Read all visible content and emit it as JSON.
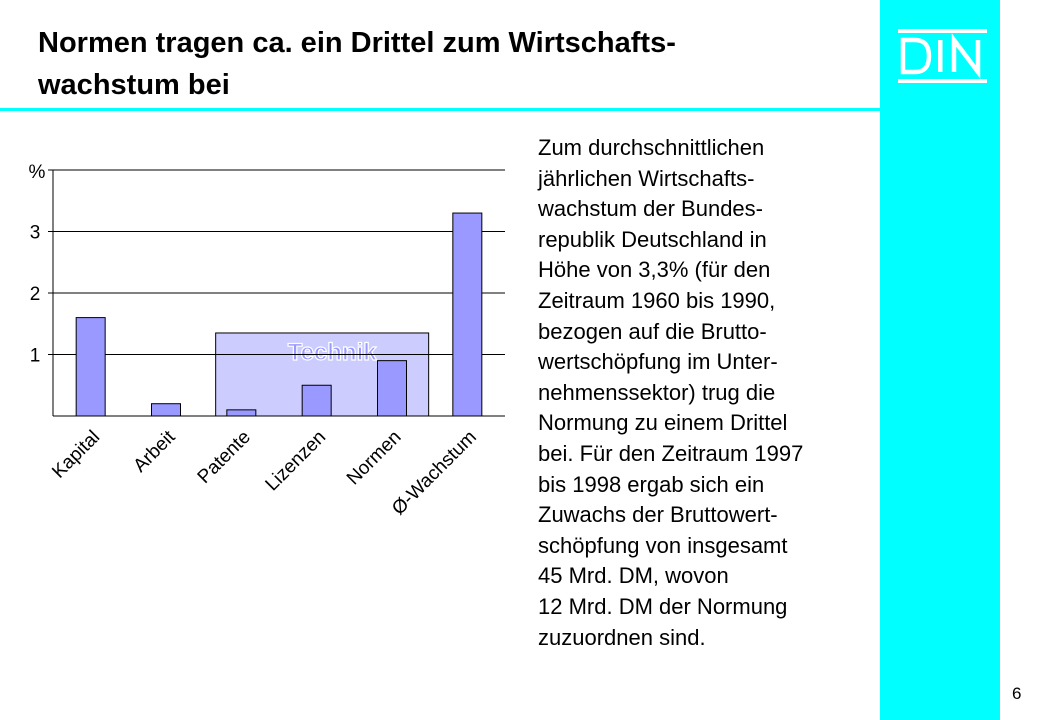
{
  "title": {
    "line1": "Normen tragen ca. ein Drittel zum Wirtschafts-",
    "line2": "wachstum bei"
  },
  "logo_text": "DIN",
  "page_number": "6",
  "colors": {
    "accent": "#00ffff",
    "bar_fill": "#9999ff",
    "technik_box": "#ccccff"
  },
  "description_lines": [
    "Zum durchschnittlichen",
    "jährlichen Wirtschafts-",
    "wachstum der Bundes-",
    "republik Deutschland in",
    "Höhe von 3,3% (für den",
    "Zeitraum 1960 bis 1990,",
    "bezogen auf die Brutto-",
    "wertschöpfung im Unter-",
    "nehmenssektor) trug die",
    "Normung zu einem Drittel",
    "bei. Für den Zeitraum 1997",
    "bis 1998 ergab sich ein",
    "Zuwachs der Bruttowert-",
    "schöpfung von insgesamt",
    "45 Mrd. DM, wovon",
    "12 Mrd. DM der Normung",
    "zuzuordnen sind."
  ],
  "chart_data": {
    "type": "bar",
    "categories": [
      "Kapital",
      "Arbeit",
      "Patente",
      "Lizenzen",
      "Normen",
      "Ø-Wachstum"
    ],
    "values": [
      1.6,
      0.2,
      0.1,
      0.5,
      0.9,
      3.3
    ],
    "ylabel": "%",
    "yticks": [
      "1",
      "2",
      "3"
    ],
    "ylim": [
      0,
      4
    ],
    "grid": true,
    "group_label": "Technik",
    "group_categories": [
      "Patente",
      "Lizenzen",
      "Normen"
    ]
  }
}
